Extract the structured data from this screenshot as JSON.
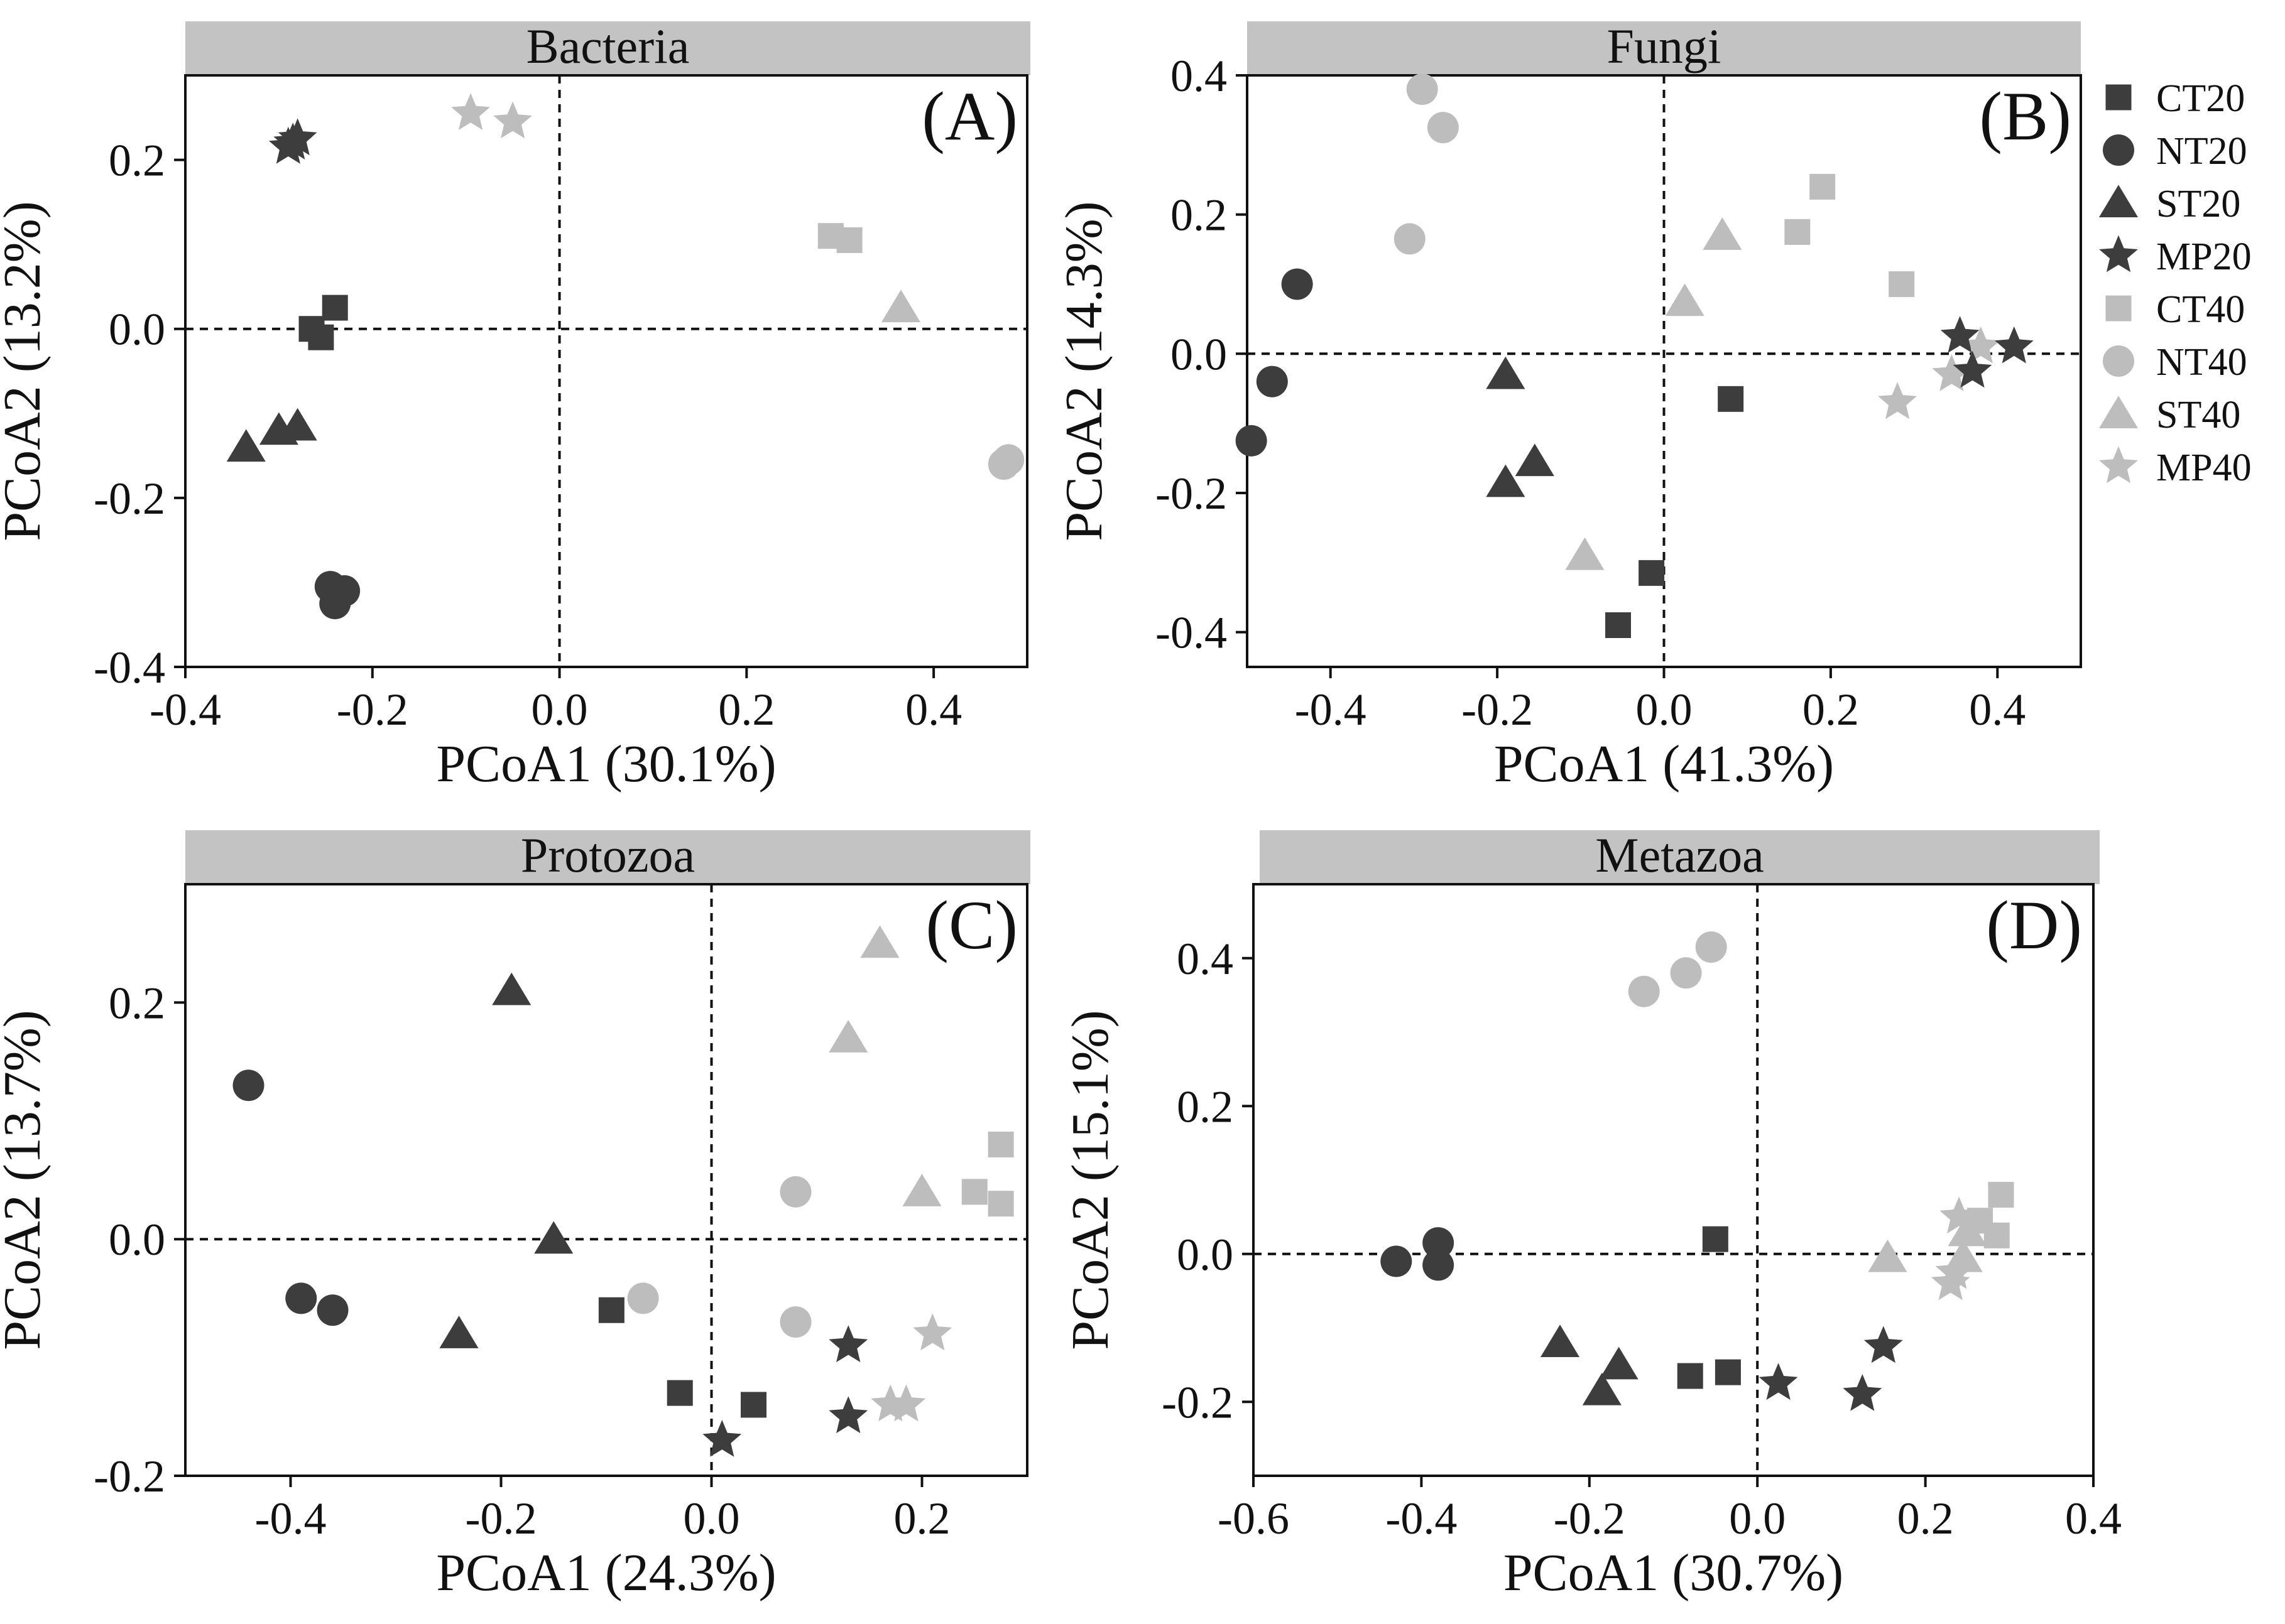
{
  "colors": {
    "group20": "#3d3d3d",
    "group40": "#bdbdbd",
    "strip": "#c3c3c3"
  },
  "legend": [
    {
      "label": "CT20",
      "shape": "square",
      "group": "20"
    },
    {
      "label": "NT20",
      "shape": "circle",
      "group": "20"
    },
    {
      "label": "ST20",
      "shape": "triangle",
      "group": "20"
    },
    {
      "label": "MP20",
      "shape": "star",
      "group": "20"
    },
    {
      "label": "CT40",
      "shape": "square",
      "group": "40"
    },
    {
      "label": "NT40",
      "shape": "circle",
      "group": "40"
    },
    {
      "label": "ST40",
      "shape": "triangle",
      "group": "40"
    },
    {
      "label": "MP40",
      "shape": "star",
      "group": "40"
    }
  ],
  "chart_data": [
    {
      "type": "scatter",
      "title": "Bacteria",
      "letter": "(A)",
      "xlabel": "PCoA1 (30.1%)",
      "ylabel": "PCoA2 (13.2%)",
      "xlim": [
        -0.4,
        0.5
      ],
      "ylim": [
        -0.4,
        0.3
      ],
      "xticks": [
        -0.4,
        -0.2,
        0.0,
        0.2,
        0.4
      ],
      "xtick_labels": [
        "-0.4",
        "-0.2",
        "0.0",
        "0.2",
        "0.4"
      ],
      "yticks": [
        -0.4,
        -0.2,
        0.0,
        0.2
      ],
      "ytick_labels": [
        "-0.4",
        "-0.2",
        "0.0",
        "0.2"
      ],
      "series": [
        {
          "name": "CT20",
          "points": [
            [
              -0.265,
              0.0
            ],
            [
              -0.255,
              -0.01
            ],
            [
              -0.24,
              0.025
            ]
          ]
        },
        {
          "name": "NT20",
          "points": [
            [
              -0.245,
              -0.305
            ],
            [
              -0.23,
              -0.31
            ],
            [
              -0.24,
              -0.325
            ]
          ]
        },
        {
          "name": "ST20",
          "points": [
            [
              -0.335,
              -0.14
            ],
            [
              -0.3,
              -0.12
            ],
            [
              -0.28,
              -0.115
            ]
          ]
        },
        {
          "name": "MP20",
          "points": [
            [
              -0.285,
              0.22
            ],
            [
              -0.28,
              0.225
            ],
            [
              -0.29,
              0.215
            ]
          ]
        },
        {
          "name": "CT40",
          "points": [
            [
              0.29,
              0.11
            ],
            [
              0.31,
              0.105
            ]
          ]
        },
        {
          "name": "NT40",
          "points": [
            [
              0.475,
              -0.16
            ],
            [
              0.48,
              -0.155
            ]
          ]
        },
        {
          "name": "ST40",
          "points": [
            [
              0.365,
              0.025
            ]
          ]
        },
        {
          "name": "MP40",
          "points": [
            [
              -0.095,
              0.255
            ],
            [
              -0.05,
              0.245
            ]
          ]
        }
      ]
    },
    {
      "type": "scatter",
      "title": "Fungi",
      "letter": "(B)",
      "xlabel": "PCoA1 (41.3%)",
      "ylabel": "PCoA2 (14.3%)",
      "xlim": [
        -0.5,
        0.5
      ],
      "ylim": [
        -0.45,
        0.4
      ],
      "xticks": [
        -0.4,
        -0.2,
        0.0,
        0.2,
        0.4
      ],
      "xtick_labels": [
        "-0.4",
        "-0.2",
        "0.0",
        "0.2",
        "0.4"
      ],
      "yticks": [
        -0.4,
        -0.2,
        0.0,
        0.2,
        0.4
      ],
      "ytick_labels": [
        "-0.4",
        "-0.2",
        "0.0",
        "0.2",
        "0.4"
      ],
      "series": [
        {
          "name": "CT20",
          "points": [
            [
              0.08,
              -0.065
            ],
            [
              -0.015,
              -0.315
            ],
            [
              -0.055,
              -0.39
            ]
          ]
        },
        {
          "name": "NT20",
          "points": [
            [
              -0.44,
              0.1
            ],
            [
              -0.47,
              -0.04
            ],
            [
              -0.495,
              -0.125
            ]
          ]
        },
        {
          "name": "ST20",
          "points": [
            [
              -0.19,
              -0.03
            ],
            [
              -0.19,
              -0.185
            ],
            [
              -0.155,
              -0.155
            ]
          ]
        },
        {
          "name": "MP20",
          "points": [
            [
              0.355,
              0.025
            ],
            [
              0.37,
              -0.025
            ],
            [
              0.42,
              0.01
            ]
          ]
        },
        {
          "name": "CT40",
          "points": [
            [
              0.16,
              0.175
            ],
            [
              0.19,
              0.24
            ],
            [
              0.285,
              0.1
            ]
          ]
        },
        {
          "name": "NT40",
          "points": [
            [
              -0.29,
              0.38
            ],
            [
              -0.265,
              0.325
            ],
            [
              -0.305,
              0.165
            ]
          ]
        },
        {
          "name": "ST40",
          "points": [
            [
              0.07,
              0.17
            ],
            [
              0.025,
              0.075
            ],
            [
              -0.095,
              -0.29
            ]
          ]
        },
        {
          "name": "MP40",
          "points": [
            [
              0.38,
              0.01
            ],
            [
              0.345,
              -0.03
            ],
            [
              0.28,
              -0.07
            ]
          ]
        }
      ]
    },
    {
      "type": "scatter",
      "title": "Protozoa",
      "letter": "(C)",
      "xlabel": "PCoA1 (24.3%)",
      "ylabel": "PCoA2 (13.7%)",
      "xlim": [
        -0.5,
        0.3
      ],
      "ylim": [
        -0.2,
        0.3
      ],
      "xticks": [
        -0.4,
        -0.2,
        0.0,
        0.2
      ],
      "xtick_labels": [
        "-0.4",
        "-0.2",
        "0.0",
        "0.2"
      ],
      "yticks": [
        -0.2,
        0.0,
        0.2
      ],
      "ytick_labels": [
        "-0.2",
        "0.0",
        "0.2"
      ],
      "series": [
        {
          "name": "CT20",
          "points": [
            [
              -0.095,
              -0.06
            ],
            [
              -0.03,
              -0.13
            ],
            [
              0.04,
              -0.14
            ]
          ]
        },
        {
          "name": "NT20",
          "points": [
            [
              -0.44,
              0.13
            ],
            [
              -0.39,
              -0.05
            ],
            [
              -0.36,
              -0.06
            ]
          ]
        },
        {
          "name": "ST20",
          "points": [
            [
              -0.19,
              0.21
            ],
            [
              -0.15,
              0.0
            ],
            [
              -0.24,
              -0.08
            ]
          ]
        },
        {
          "name": "MP20",
          "points": [
            [
              0.13,
              -0.09
            ],
            [
              0.13,
              -0.15
            ],
            [
              0.01,
              -0.17
            ]
          ]
        },
        {
          "name": "CT40",
          "points": [
            [
              0.275,
              0.08
            ],
            [
              0.25,
              0.04
            ],
            [
              0.275,
              0.03
            ]
          ]
        },
        {
          "name": "NT40",
          "points": [
            [
              0.08,
              0.04
            ],
            [
              -0.065,
              -0.05
            ],
            [
              0.08,
              -0.07
            ]
          ]
        },
        {
          "name": "ST40",
          "points": [
            [
              0.16,
              0.25
            ],
            [
              0.13,
              0.17
            ],
            [
              0.2,
              0.04
            ]
          ]
        },
        {
          "name": "MP40",
          "points": [
            [
              0.21,
              -0.08
            ],
            [
              0.17,
              -0.14
            ],
            [
              0.185,
              -0.14
            ]
          ]
        }
      ]
    },
    {
      "type": "scatter",
      "title": "Metazoa",
      "letter": "(D)",
      "xlabel": "PCoA1 (30.7%)",
      "ylabel": "PCoA2 (15.1%)",
      "xlim": [
        -0.6,
        0.4
      ],
      "ylim": [
        -0.3,
        0.5
      ],
      "xticks": [
        -0.6,
        -0.4,
        -0.2,
        0.0,
        0.2,
        0.4
      ],
      "xtick_labels": [
        "-0.6",
        "-0.4",
        "-0.2",
        "0.0",
        "0.2",
        "0.4"
      ],
      "yticks": [
        -0.2,
        0.0,
        0.2,
        0.4
      ],
      "ytick_labels": [
        "-0.2",
        "0.0",
        "0.2",
        "0.4"
      ],
      "series": [
        {
          "name": "CT20",
          "points": [
            [
              -0.05,
              0.02
            ],
            [
              -0.08,
              -0.165
            ],
            [
              -0.035,
              -0.16
            ]
          ]
        },
        {
          "name": "NT20",
          "points": [
            [
              -0.43,
              -0.01
            ],
            [
              -0.38,
              0.015
            ],
            [
              -0.38,
              -0.015
            ]
          ]
        },
        {
          "name": "ST20",
          "points": [
            [
              -0.235,
              -0.12
            ],
            [
              -0.165,
              -0.15
            ],
            [
              -0.185,
              -0.185
            ]
          ]
        },
        {
          "name": "MP20",
          "points": [
            [
              0.15,
              -0.125
            ],
            [
              0.025,
              -0.175
            ],
            [
              0.125,
              -0.19
            ]
          ]
        },
        {
          "name": "CT40",
          "points": [
            [
              0.29,
              0.08
            ],
            [
              0.265,
              0.045
            ],
            [
              0.285,
              0.025
            ]
          ]
        },
        {
          "name": "NT40",
          "points": [
            [
              -0.055,
              0.415
            ],
            [
              -0.085,
              0.38
            ],
            [
              -0.135,
              0.355
            ]
          ]
        },
        {
          "name": "ST40",
          "points": [
            [
              0.155,
              -0.005
            ],
            [
              0.25,
              0.03
            ],
            [
              0.245,
              -0.005
            ]
          ]
        },
        {
          "name": "MP40",
          "points": [
            [
              0.24,
              0.05
            ],
            [
              0.235,
              -0.025
            ],
            [
              0.23,
              -0.04
            ]
          ]
        }
      ]
    }
  ]
}
